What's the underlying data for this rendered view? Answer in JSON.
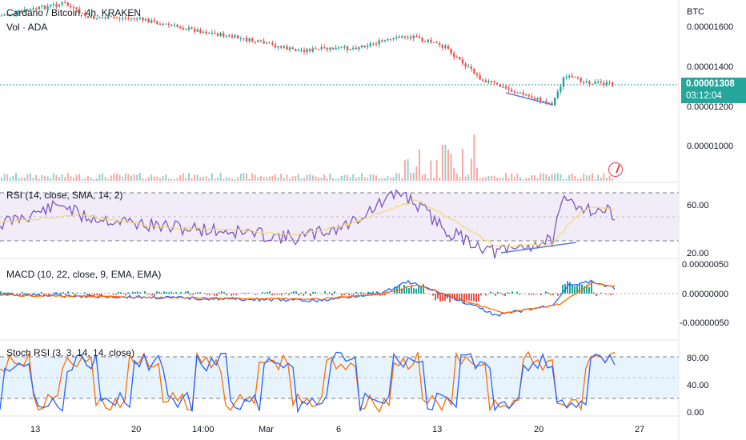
{
  "header": {
    "symbol_title": "Cardano / Bitcoin, 4h, KRAKEN",
    "volume_label": "Vol · ADA"
  },
  "price_axis": {
    "currency": "BTC",
    "ticks": [
      "0.00001600",
      "0.00001400",
      "0.00001200",
      "0.00001000"
    ],
    "current_price": "0.00001308",
    "countdown": "03:12:04"
  },
  "rsi_pane": {
    "label": "RSI (14, close, SMA, 14, 2)",
    "ticks": [
      "60.00",
      "20.00"
    ]
  },
  "macd_pane": {
    "label": "MACD (10, 22, close, 9, EMA, EMA)",
    "ticks": [
      "0.00000050",
      "0.00000000",
      "-0.00000050"
    ]
  },
  "stoch_pane": {
    "label": "Stoch RSI (3, 3, 14, 14, close)",
    "ticks": [
      "80.00",
      "40.00",
      "0.00"
    ]
  },
  "time_axis": {
    "ticks": [
      "13",
      "20",
      "14:00",
      "Mar",
      "6",
      "13",
      "20",
      "27"
    ]
  },
  "colors": {
    "up": "#26a69a",
    "down": "#ef5350",
    "rsi_line": "#7e57c2",
    "rsi_ma": "#f5d76e",
    "macd_line": "#2962ff",
    "signal_line": "#ff6d00",
    "stoch_k": "#2962ff",
    "stoch_d": "#ff6d00",
    "divergence": "#5b7be6"
  },
  "chart_data": {
    "type": "candlestick",
    "price_key_points": {
      "x": [
        "Feb 8",
        "Feb 13",
        "Feb 17",
        "Feb 20",
        "Feb 24",
        "Feb 28",
        "Mar 3",
        "Mar 7",
        "Mar 10",
        "Mar 13",
        "Mar 16",
        "Mar 18",
        "Mar 20",
        "Mar 21",
        "Mar 23",
        "Mar 24"
      ],
      "y": [
        1.65e-05,
        1.69e-05,
        1.65e-05,
        1.64e-05,
        1.62e-05,
        1.59e-05,
        1.56e-05,
        1.54e-05,
        1.57e-05,
        1.52e-05,
        1.27e-05,
        1.21e-05,
        1.19e-05,
        1.34e-05,
        1.32e-05,
        1.31e-05
      ]
    },
    "current_price": 1.308e-05,
    "price_range": [
      9e-06,
      1.7e-05
    ],
    "volume_spike_dates": [
      "Mar 10",
      "Mar 13",
      "Mar 14",
      "Mar 15",
      "Mar 16",
      "Mar 21"
    ],
    "rsi": {
      "range": [
        20,
        80
      ],
      "bands": [
        30,
        70
      ],
      "key_values": [
        45,
        60,
        42,
        50,
        78,
        35,
        25,
        30,
        65,
        55
      ]
    },
    "macd": {
      "range": [
        -5e-07,
        5e-07
      ],
      "zero_line": 0
    },
    "stoch_rsi": {
      "range": [
        0,
        100
      ],
      "bands": [
        20,
        80
      ]
    }
  }
}
